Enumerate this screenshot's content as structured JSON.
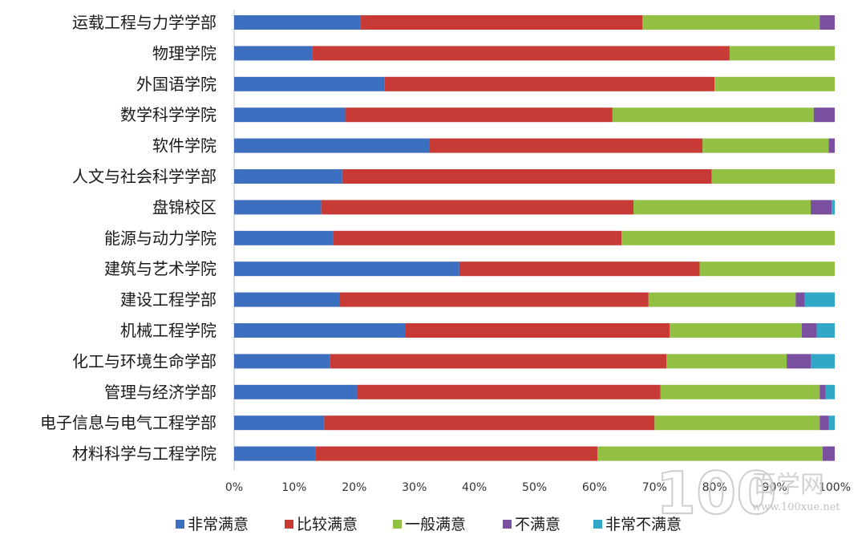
{
  "chart_data": {
    "type": "bar",
    "orientation": "horizontal",
    "stacked": "percent",
    "categories": [
      "运载工程与力学学部",
      "物理学院",
      "外国语学院",
      "数学科学学院",
      "软件学院",
      "人文与社会科学学部",
      "盘锦校区",
      "能源与动力学院",
      "建筑与艺术学院",
      "建设工程学部",
      "机械工程学院",
      "化工与环境生命学部",
      "管理与经济学部",
      "电子信息与电气工程学部",
      "材料科学与工程学院"
    ],
    "series": [
      {
        "name": "非常满意",
        "color": "#3d6fc1",
        "values": [
          21.0,
          13.0,
          25.0,
          18.5,
          32.5,
          18.0,
          14.5,
          16.5,
          37.5,
          17.5,
          28.5,
          16.0,
          20.5,
          15.0,
          13.5
        ]
      },
      {
        "name": "比较满意",
        "color": "#c83a35",
        "values": [
          47.0,
          69.5,
          55.0,
          44.5,
          45.5,
          61.5,
          52.0,
          48.0,
          40.0,
          51.5,
          44.0,
          56.0,
          50.5,
          55.0,
          47.0
        ]
      },
      {
        "name": "一般满意",
        "color": "#92c042",
        "values": [
          29.5,
          17.5,
          20.0,
          33.5,
          21.0,
          20.5,
          29.5,
          35.5,
          22.5,
          24.5,
          22.0,
          20.0,
          26.5,
          27.5,
          37.5
        ]
      },
      {
        "name": "不满意",
        "color": "#7b4fa0",
        "values": [
          2.5,
          0,
          0,
          3.5,
          1.0,
          0,
          3.5,
          0,
          0,
          1.5,
          2.5,
          4.0,
          1.0,
          1.5,
          2.0
        ]
      },
      {
        "name": "非常不满意",
        "color": "#31a8c8",
        "values": [
          0,
          0,
          0,
          0,
          0,
          0,
          0.5,
          0,
          0,
          5.0,
          3.0,
          4.0,
          1.5,
          1.0,
          0
        ]
      }
    ],
    "xlim": [
      0,
      100
    ],
    "xticks": [
      "0%",
      "10%",
      "20%",
      "30%",
      "40%",
      "50%",
      "60%",
      "70%",
      "80%",
      "90%",
      "100%"
    ],
    "xlabel": "",
    "ylabel": "",
    "title": "",
    "grid": false,
    "legend_position": "bottom"
  },
  "watermark": {
    "number": "100",
    "text": "百学网",
    "url": "www.100xue.net"
  }
}
